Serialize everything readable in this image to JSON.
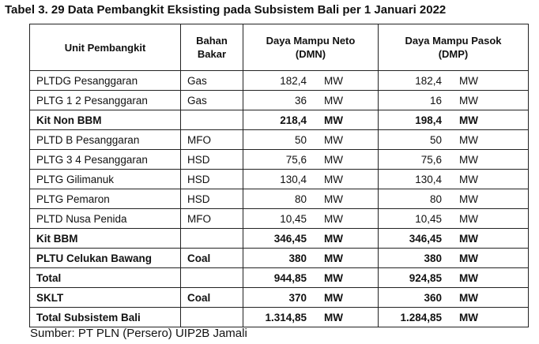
{
  "title": "Tabel 3. 29 Data Pembangkit Eksisting pada Subsistem Bali per 1 Januari 2022",
  "table": {
    "headers": [
      {
        "lines": [
          "Unit Pembangkit"
        ]
      },
      {
        "lines": [
          "Bahan",
          "Bakar"
        ]
      },
      {
        "lines": [
          "Daya Mampu Neto",
          "(DMN)"
        ]
      },
      {
        "lines": [
          "Daya Mampu Pasok",
          "(DMP)"
        ]
      }
    ],
    "rows": [
      {
        "unit": "PLTDG Pesanggaran",
        "fuel": "Gas",
        "dmn": "182,4",
        "dmn_unit": "MW",
        "dmp": "182,4",
        "dmp_unit": "MW",
        "bold": false
      },
      {
        "unit": "PLTG 1 2 Pesanggaran",
        "fuel": "Gas",
        "dmn": "36",
        "dmn_unit": "MW",
        "dmp": "16",
        "dmp_unit": "MW",
        "bold": false
      },
      {
        "unit": "Kit Non BBM",
        "dmn": "218,4",
        "dmn_unit": "MW",
        "dmp": "198,4",
        "dmp_unit": "MW",
        "bold": true
      },
      {
        "unit": "PLTD B Pesanggaran",
        "fuel": "MFO",
        "dmn": "50",
        "dmn_unit": "MW",
        "dmp": "50",
        "dmp_unit": "MW",
        "bold": false
      },
      {
        "unit": "PLTG 3 4 Pesanggaran",
        "fuel": "HSD",
        "dmn": "75,6",
        "dmn_unit": "MW",
        "dmp": "75,6",
        "dmp_unit": "MW",
        "bold": false
      },
      {
        "unit": "PLTG Gilimanuk",
        "fuel": "HSD",
        "dmn": "130,4",
        "dmn_unit": "MW",
        "dmp": "130,4",
        "dmp_unit": "MW",
        "bold": false
      },
      {
        "unit": "PLTG Pemaron",
        "fuel": "HSD",
        "dmn": "80",
        "dmn_unit": "MW",
        "dmp": "80",
        "dmp_unit": "MW",
        "bold": false
      },
      {
        "unit": "PLTD Nusa Penida",
        "fuel": "MFO",
        "dmn": "10,45",
        "dmn_unit": "MW",
        "dmp": "10,45",
        "dmp_unit": "MW",
        "bold": false
      },
      {
        "unit": "Kit BBM",
        "dmn": "346,45",
        "dmn_unit": "MW",
        "dmp": "346,45",
        "dmp_unit": "MW",
        "bold": true
      },
      {
        "unit": "PLTU Celukan Bawang",
        "fuel": "Coal",
        "dmn": "380",
        "dmn_unit": "MW",
        "dmp": "380",
        "dmp_unit": "MW",
        "bold": true
      },
      {
        "unit": "Total",
        "dmn": "944,85",
        "dmn_unit": "MW",
        "dmp": "924,85",
        "dmp_unit": "MW",
        "bold": true
      },
      {
        "unit": "SKLT",
        "fuel": "Coal",
        "dmn": "370",
        "dmn_unit": "MW",
        "dmp": "360",
        "dmp_unit": "MW",
        "bold": true
      },
      {
        "unit": "Total Subsistem Bali",
        "dmn": "1.314,85",
        "dmn_unit": "MW",
        "dmp": "1.284,85",
        "dmp_unit": "MW",
        "bold": true
      }
    ]
  },
  "source": "Sumber: PT PLN (Persero) UIP2B Jamali"
}
